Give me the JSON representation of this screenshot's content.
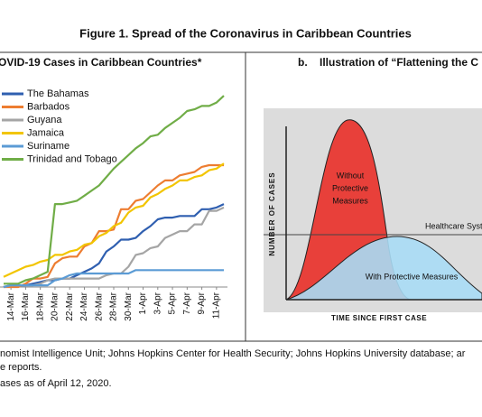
{
  "figure_title": "Figure 1. Spread of the Coronavirus in Caribbean Countries",
  "chart_data": {
    "type": "line",
    "title": "OVID-19 Cases in Caribbean Countries*",
    "categories": [
      null,
      "14-Mar",
      null,
      "16-Mar",
      null,
      "18-Mar",
      null,
      "20-Mar",
      null,
      "22-Mar",
      null,
      "24-Mar",
      null,
      "26-Mar",
      null,
      "28-Mar",
      null,
      "30-Mar",
      null,
      "1-Apr",
      null,
      "3-Apr",
      null,
      "5-Apr",
      null,
      "7-Apr",
      null,
      "9-Apr",
      null,
      "11-Apr",
      null
    ],
    "series": [
      {
        "name": "The Bahamas",
        "color": "#2f5fb0",
        "values": [
          0,
          1,
          1,
          1,
          2,
          3,
          4,
          4,
          5,
          5,
          7,
          9,
          11,
          14,
          21,
          24,
          28,
          28,
          29,
          33,
          36,
          40,
          41,
          41,
          42,
          42,
          42,
          46,
          46,
          47,
          49
        ]
      },
      {
        "name": "Barbados",
        "color": "#ed7d31",
        "values": [
          0,
          0,
          0,
          2,
          5,
          5,
          6,
          14,
          17,
          18,
          18,
          24,
          26,
          33,
          33,
          34,
          46,
          46,
          51,
          52,
          56,
          60,
          63,
          63,
          66,
          67,
          68,
          71,
          72,
          72,
          72
        ]
      },
      {
        "name": "Guyana",
        "color": "#a5a5a5",
        "values": [
          0,
          1,
          1,
          1,
          1,
          2,
          4,
          5,
          5,
          5,
          5,
          5,
          5,
          5,
          7,
          8,
          8,
          12,
          19,
          20,
          23,
          24,
          29,
          31,
          33,
          33,
          37,
          37,
          45,
          45,
          47
        ]
      },
      {
        "name": "Jamaica",
        "color": "#f2c500",
        "values": [
          6,
          8,
          10,
          12,
          13,
          15,
          16,
          19,
          19,
          21,
          22,
          25,
          26,
          30,
          32,
          36,
          38,
          44,
          47,
          48,
          53,
          55,
          58,
          60,
          63,
          63,
          65,
          66,
          69,
          70,
          73
        ]
      },
      {
        "name": "Suriname",
        "color": "#5b9bd5",
        "values": [
          0,
          1,
          1,
          1,
          1,
          1,
          1,
          4,
          5,
          7,
          8,
          8,
          8,
          8,
          8,
          8,
          8,
          8,
          10,
          10,
          10,
          10,
          10,
          10,
          10,
          10,
          10,
          10,
          10,
          10,
          10
        ]
      },
      {
        "name": "Trinidad and Tobago",
        "color": "#70ad47",
        "values": [
          2,
          2,
          2,
          4,
          5,
          7,
          9,
          49,
          49,
          50,
          51,
          54,
          57,
          60,
          65,
          70,
          74,
          78,
          82,
          85,
          89,
          90,
          94,
          97,
          100,
          104,
          105,
          107,
          107,
          109,
          113
        ]
      }
    ],
    "ylim": [
      0,
      120
    ],
    "legend": "upper left"
  },
  "illustration": {
    "title": "b.    Illustration of “Flattening the C",
    "y_label": "NUMBER OF CASES",
    "x_label": "TIME SINCE FIRST CASE",
    "without": [
      "Without",
      "Protective",
      "Measures"
    ],
    "with": "With Protective Measures",
    "threshold": "Healthcare Syste"
  },
  "notes": [
    "nomist Intelligence Unit; Johns Hopkins Center for Health Security; Johns Hopkins University database; ar",
    "e reports.",
    "ases as of April 12, 2020."
  ]
}
